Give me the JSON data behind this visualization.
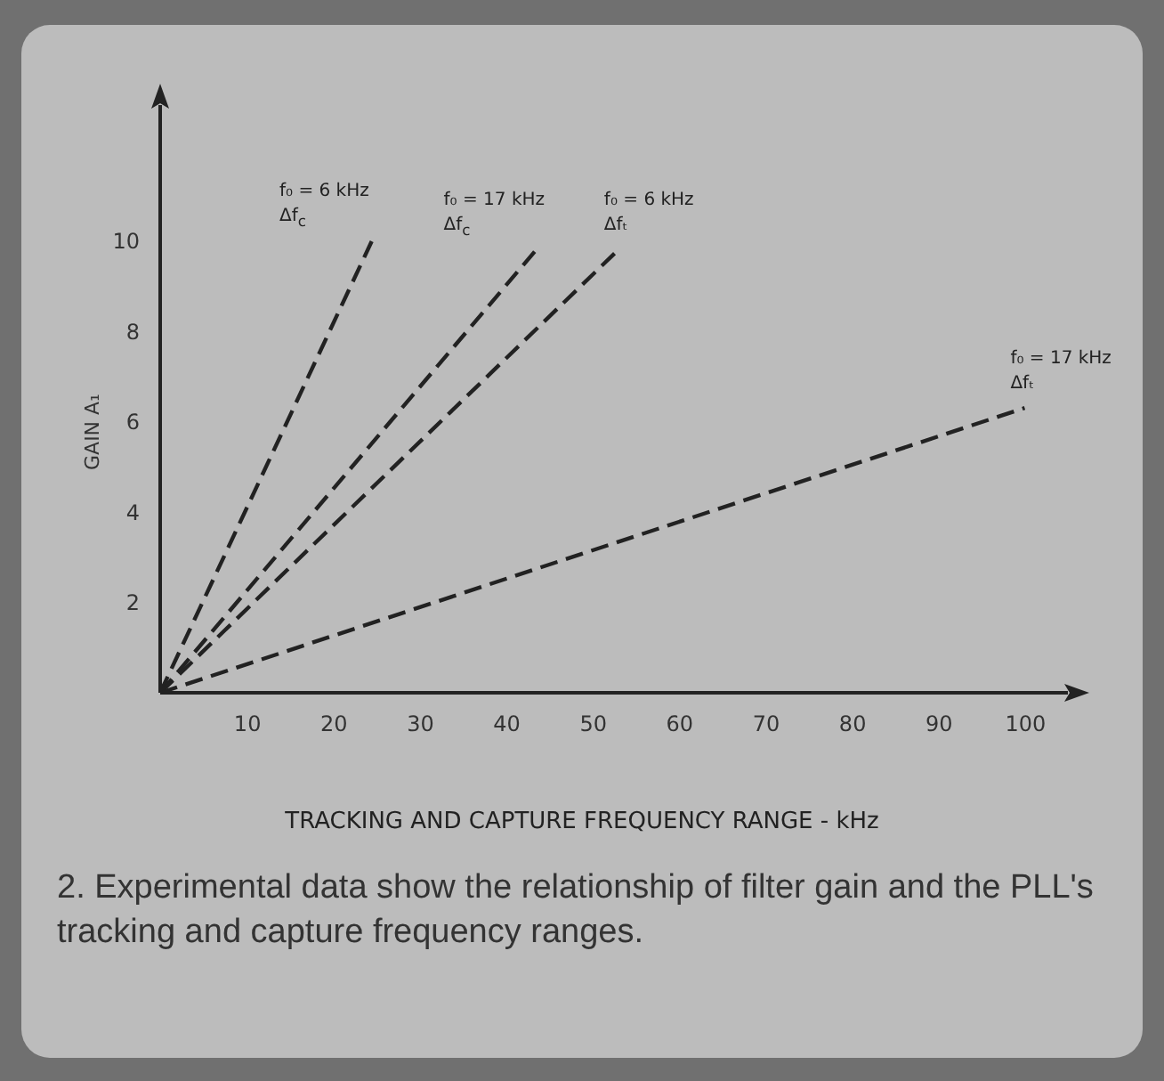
{
  "chart_data": {
    "type": "line",
    "xlabel": "TRACKING AND CAPTURE FREQUENCY RANGE - kHz",
    "ylabel": "GAIN A₁",
    "xlim": [
      0,
      105
    ],
    "ylim": [
      0,
      13
    ],
    "xticks": [
      10,
      20,
      30,
      40,
      50,
      60,
      70,
      80,
      90,
      100
    ],
    "yticks": [
      2,
      4,
      6,
      8,
      10
    ],
    "grid": false,
    "marker": "none",
    "line_style": "dashed",
    "series": [
      {
        "name": "f₀ = 6 kHz Δf$_{c}$",
        "color": "#222222",
        "x": [
          0,
          24.5
        ],
        "values": [
          0,
          10
        ]
      },
      {
        "name": "f₀ = 17 kHz Δf$_{c}$",
        "color": "#222222",
        "x": [
          0,
          43.5
        ],
        "values": [
          0,
          9.8
        ]
      },
      {
        "name": "f₀ = 6 kHz Δfₜ",
        "color": "#222222",
        "x": [
          0,
          53
        ],
        "values": [
          0,
          9.8
        ]
      },
      {
        "name": "f₀ = 17 kHz Δfₜ",
        "color": "#222222",
        "x": [
          0,
          100
        ],
        "values": [
          0,
          6.3
        ]
      }
    ],
    "annotations": [
      "2. Experimental data show the relationship of filter gain and the PLL's tracking and capture frequency ranges."
    ]
  }
}
